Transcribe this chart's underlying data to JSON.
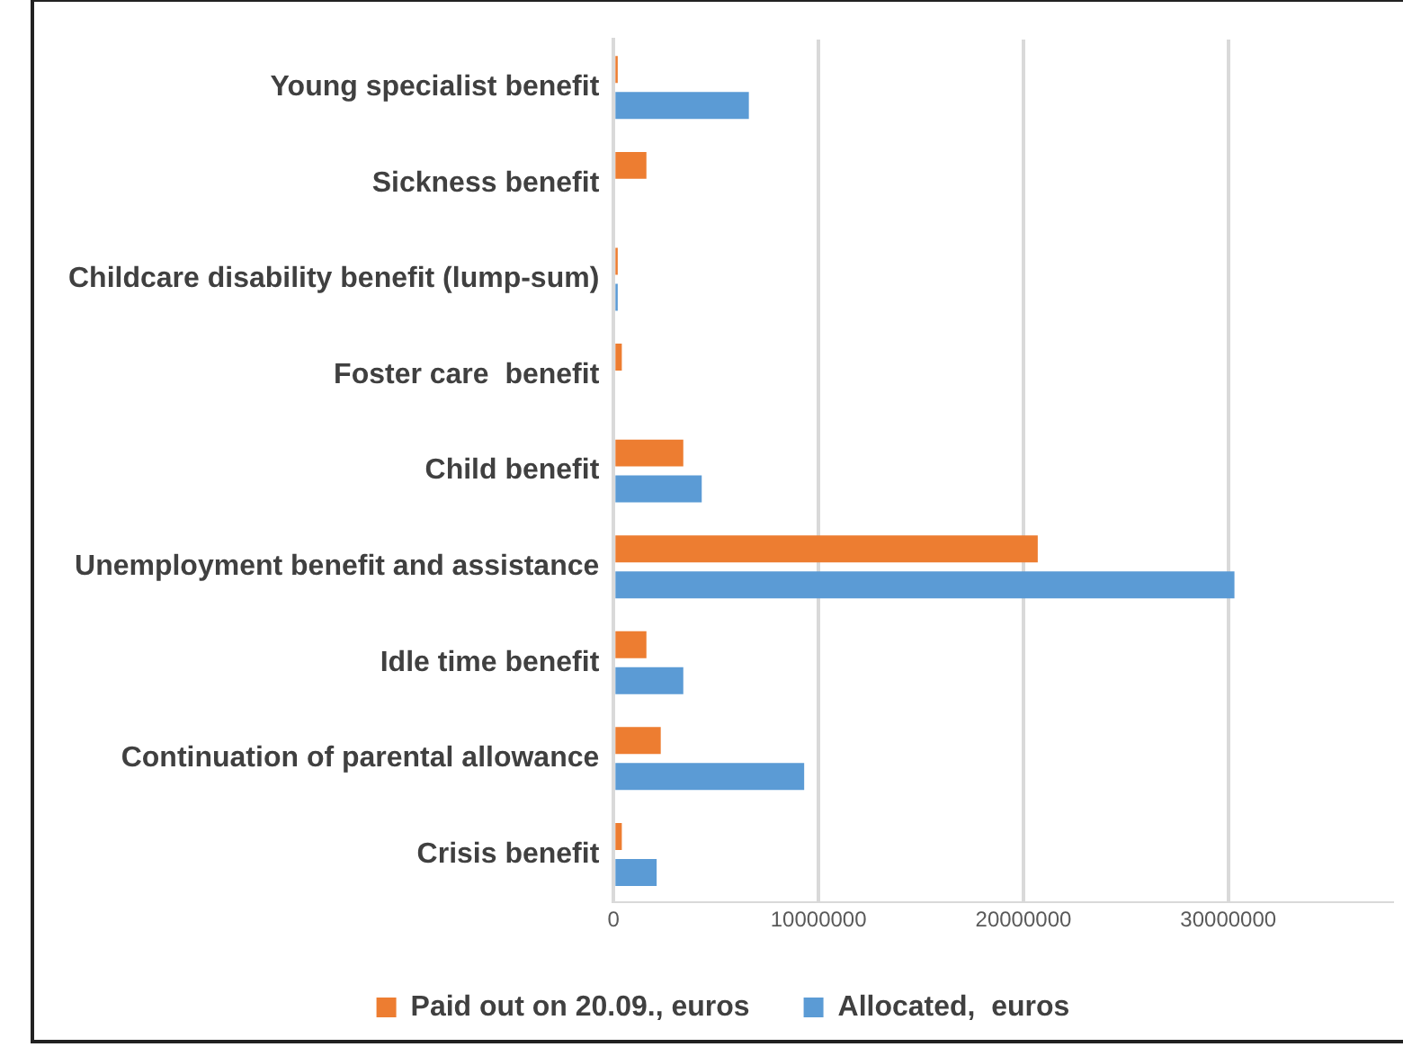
{
  "chart_data": {
    "type": "bar",
    "orientation": "horizontal",
    "categories": [
      "Young specialist benefit",
      "Sickness benefit",
      "Childcare disability benefit (lump-sum)",
      "Foster care  benefit",
      "Child benefit",
      "Unemployment benefit and assistance",
      "Idle time benefit",
      "Continuation of parental allowance",
      "Crisis benefit"
    ],
    "series": [
      {
        "name": "Paid out on 20.09., euros",
        "color": "#ed7d31",
        "values": [
          200000,
          1600000,
          200000,
          400000,
          3400000,
          20700000,
          1600000,
          2300000,
          400000
        ]
      },
      {
        "name": "Allocated,  euros",
        "color": "#5b9bd5",
        "values": [
          6600000,
          null,
          200000,
          null,
          4300000,
          30300000,
          3400000,
          9300000,
          2100000
        ]
      }
    ],
    "xlim": [
      0,
      38000000
    ],
    "xticks": [
      0,
      10000000,
      20000000,
      30000000
    ],
    "grid": "x",
    "legend": "bottom"
  }
}
